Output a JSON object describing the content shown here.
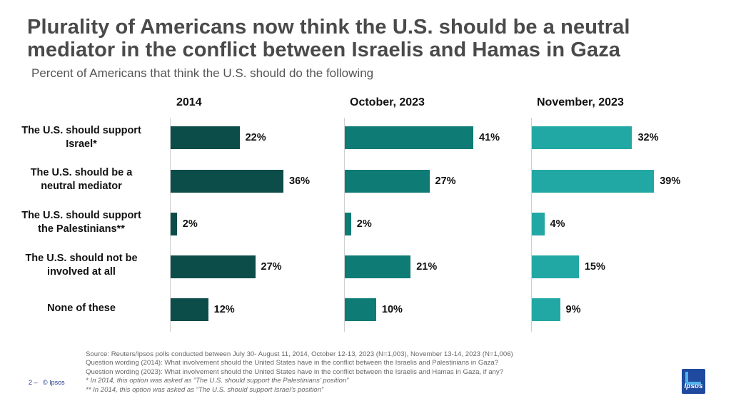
{
  "title_line1": "Plurality of Americans now think the U.S. should be a neutral",
  "title_line2": "mediator in the conflict between Israelis and Hamas in Gaza",
  "subtitle": "Percent of Americans that think the U.S. should do the following",
  "chart_data": {
    "type": "bar",
    "orientation": "horizontal",
    "categories": [
      [
        "The U.S. should support",
        "Israel*"
      ],
      [
        "The U.S. should be a",
        "neutral mediator"
      ],
      [
        "The U.S. should support",
        "the Palestinians**"
      ],
      [
        "The U.S. should not be",
        "involved at all"
      ],
      [
        "None of these"
      ]
    ],
    "series": [
      {
        "name": "2014",
        "values": [
          22,
          36,
          2,
          27,
          12
        ],
        "labels": [
          "22%",
          "36%",
          "2%",
          "27%",
          "12%"
        ],
        "color": "#0d4d49"
      },
      {
        "name": "October, 2023",
        "values": [
          41,
          27,
          2,
          21,
          10
        ],
        "labels": [
          "41%",
          "27%",
          "2%",
          "21%",
          "10%"
        ],
        "color": "#0e7b75"
      },
      {
        "name": "November, 2023",
        "values": [
          32,
          39,
          4,
          15,
          9
        ],
        "labels": [
          "32%",
          "39%",
          "4%",
          "15%",
          "9%"
        ],
        "color": "#22a8a4"
      }
    ],
    "xlim": [
      0,
      45
    ],
    "unit": "%"
  },
  "source": {
    "line1": "Source: Reuters/Ipsos polls conducted between July 30- August 11, 2014, October 12-13, 2023 (N=1,003), November 13-14, 2023 (N=1,006)",
    "line2": "Question wording (2014): What involvement should the United States have in the conflict between the Israelis and Palestinians in Gaza?",
    "line3": "Question wording (2023): What involvement should the United States have in the conflict between the Israelis and Hamas in Gaza, if any?",
    "note1": "* In 2014, this option was asked as “The U.S. should support the Palestinians’ position”",
    "note2": "** In 2014, this option was asked as “The U.S. should support Israel’s position”"
  },
  "footer": {
    "page": "2 –",
    "copyright": "© Ipsos"
  },
  "logo_text": "Ipsos"
}
